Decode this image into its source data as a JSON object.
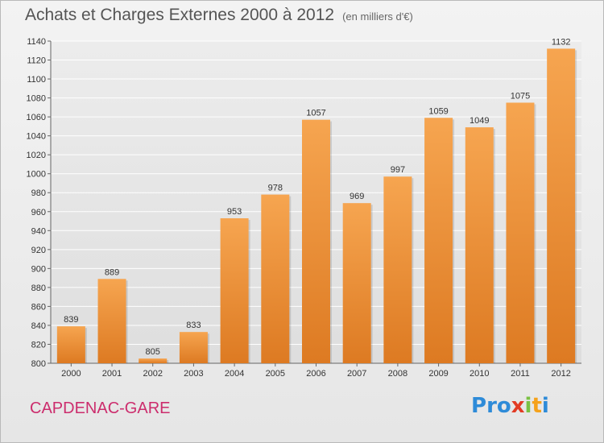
{
  "title": "Achats et Charges Externes 2000 à 2012",
  "unit": "(en milliers d'€)",
  "city": "CAPDENAC-GARE",
  "logo": {
    "letters": [
      "P",
      "r",
      "o",
      "x",
      "i",
      "t",
      "i"
    ],
    "colors": [
      "#2e8bd8",
      "#2e8bd8",
      "#2e8bd8",
      "#e23b24",
      "#7ac143",
      "#f5a21b",
      "#2e8bd8"
    ]
  },
  "colors": {
    "bar_top": "#f6a550",
    "bar_bottom": "#dd7a22",
    "city": "#cc2d6d"
  },
  "chart_data": {
    "type": "bar",
    "categories": [
      "2000",
      "2001",
      "2002",
      "2003",
      "2004",
      "2005",
      "2006",
      "2007",
      "2008",
      "2009",
      "2010",
      "2011",
      "2012"
    ],
    "values": [
      839,
      889,
      805,
      833,
      953,
      978,
      1057,
      969,
      997,
      1059,
      1049,
      1075,
      1132
    ],
    "ylim": [
      800,
      1140
    ],
    "yticks": [
      800,
      820,
      840,
      860,
      880,
      900,
      920,
      940,
      960,
      980,
      1000,
      1020,
      1040,
      1060,
      1080,
      1100,
      1120,
      1140
    ],
    "grid": true
  }
}
